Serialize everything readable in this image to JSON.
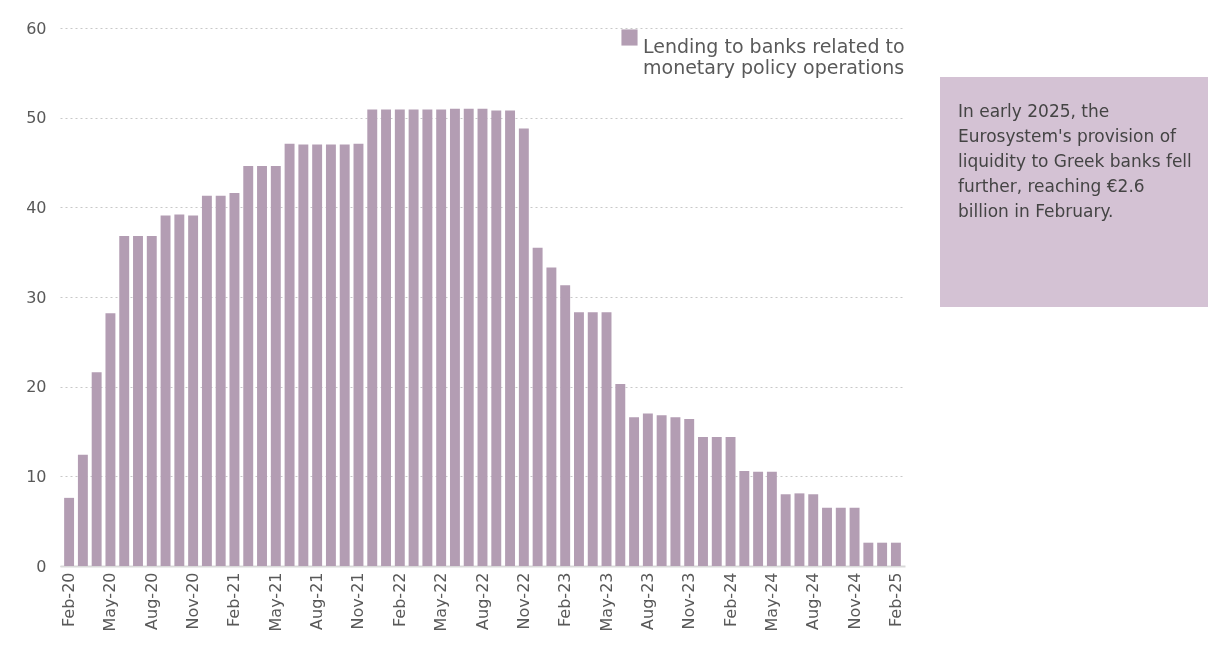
{
  "chart_data": {
    "type": "bar",
    "categories": [
      "Feb-20",
      null,
      null,
      "May-20",
      null,
      null,
      "Aug-20",
      null,
      null,
      "Nov-20",
      null,
      null,
      "Feb-21",
      null,
      null,
      "May-21",
      null,
      null,
      "Aug-21",
      null,
      null,
      "Nov-21",
      null,
      null,
      "Feb-22",
      null,
      null,
      "May-22",
      null,
      null,
      "Aug-22",
      null,
      null,
      "Nov-22",
      null,
      null,
      "Feb-23",
      null,
      null,
      "May-23",
      null,
      null,
      "Aug-23",
      null,
      null,
      "Nov-23",
      null,
      null,
      "Feb-24",
      null,
      null,
      "May-24",
      null,
      null,
      "Aug-24",
      null,
      null,
      "Nov-24",
      null,
      null,
      "Feb-25"
    ],
    "series": [
      {
        "name": "Lending to banks related to monetary policy operations",
        "color": "#b39db3",
        "values": [
          7.6,
          12.4,
          21.6,
          28.2,
          36.8,
          36.8,
          36.8,
          39.1,
          39.2,
          39.1,
          41.3,
          41.3,
          41.6,
          44.6,
          44.6,
          44.6,
          47.1,
          47.0,
          47.0,
          47.0,
          47.0,
          47.1,
          50.9,
          50.9,
          50.9,
          50.9,
          50.9,
          50.9,
          51.0,
          51.0,
          51.0,
          50.8,
          50.8,
          48.8,
          35.5,
          33.3,
          31.3,
          28.3,
          28.3,
          28.3,
          20.3,
          16.6,
          17.0,
          16.8,
          16.6,
          16.4,
          14.4,
          14.4,
          14.4,
          10.6,
          10.5,
          10.5,
          8.0,
          8.1,
          8.0,
          6.5,
          6.5,
          6.5,
          2.6,
          2.6,
          2.6
        ]
      }
    ],
    "ylim": [
      0,
      60
    ],
    "yticks": [
      0,
      10,
      20,
      30,
      40,
      50,
      60
    ],
    "grid": "y",
    "legend": "top right",
    "annotations": [
      "In early 2025, the Eurosystem's provision of liquidity to Greek banks fell further, reaching €2.6 billion in February."
    ]
  }
}
